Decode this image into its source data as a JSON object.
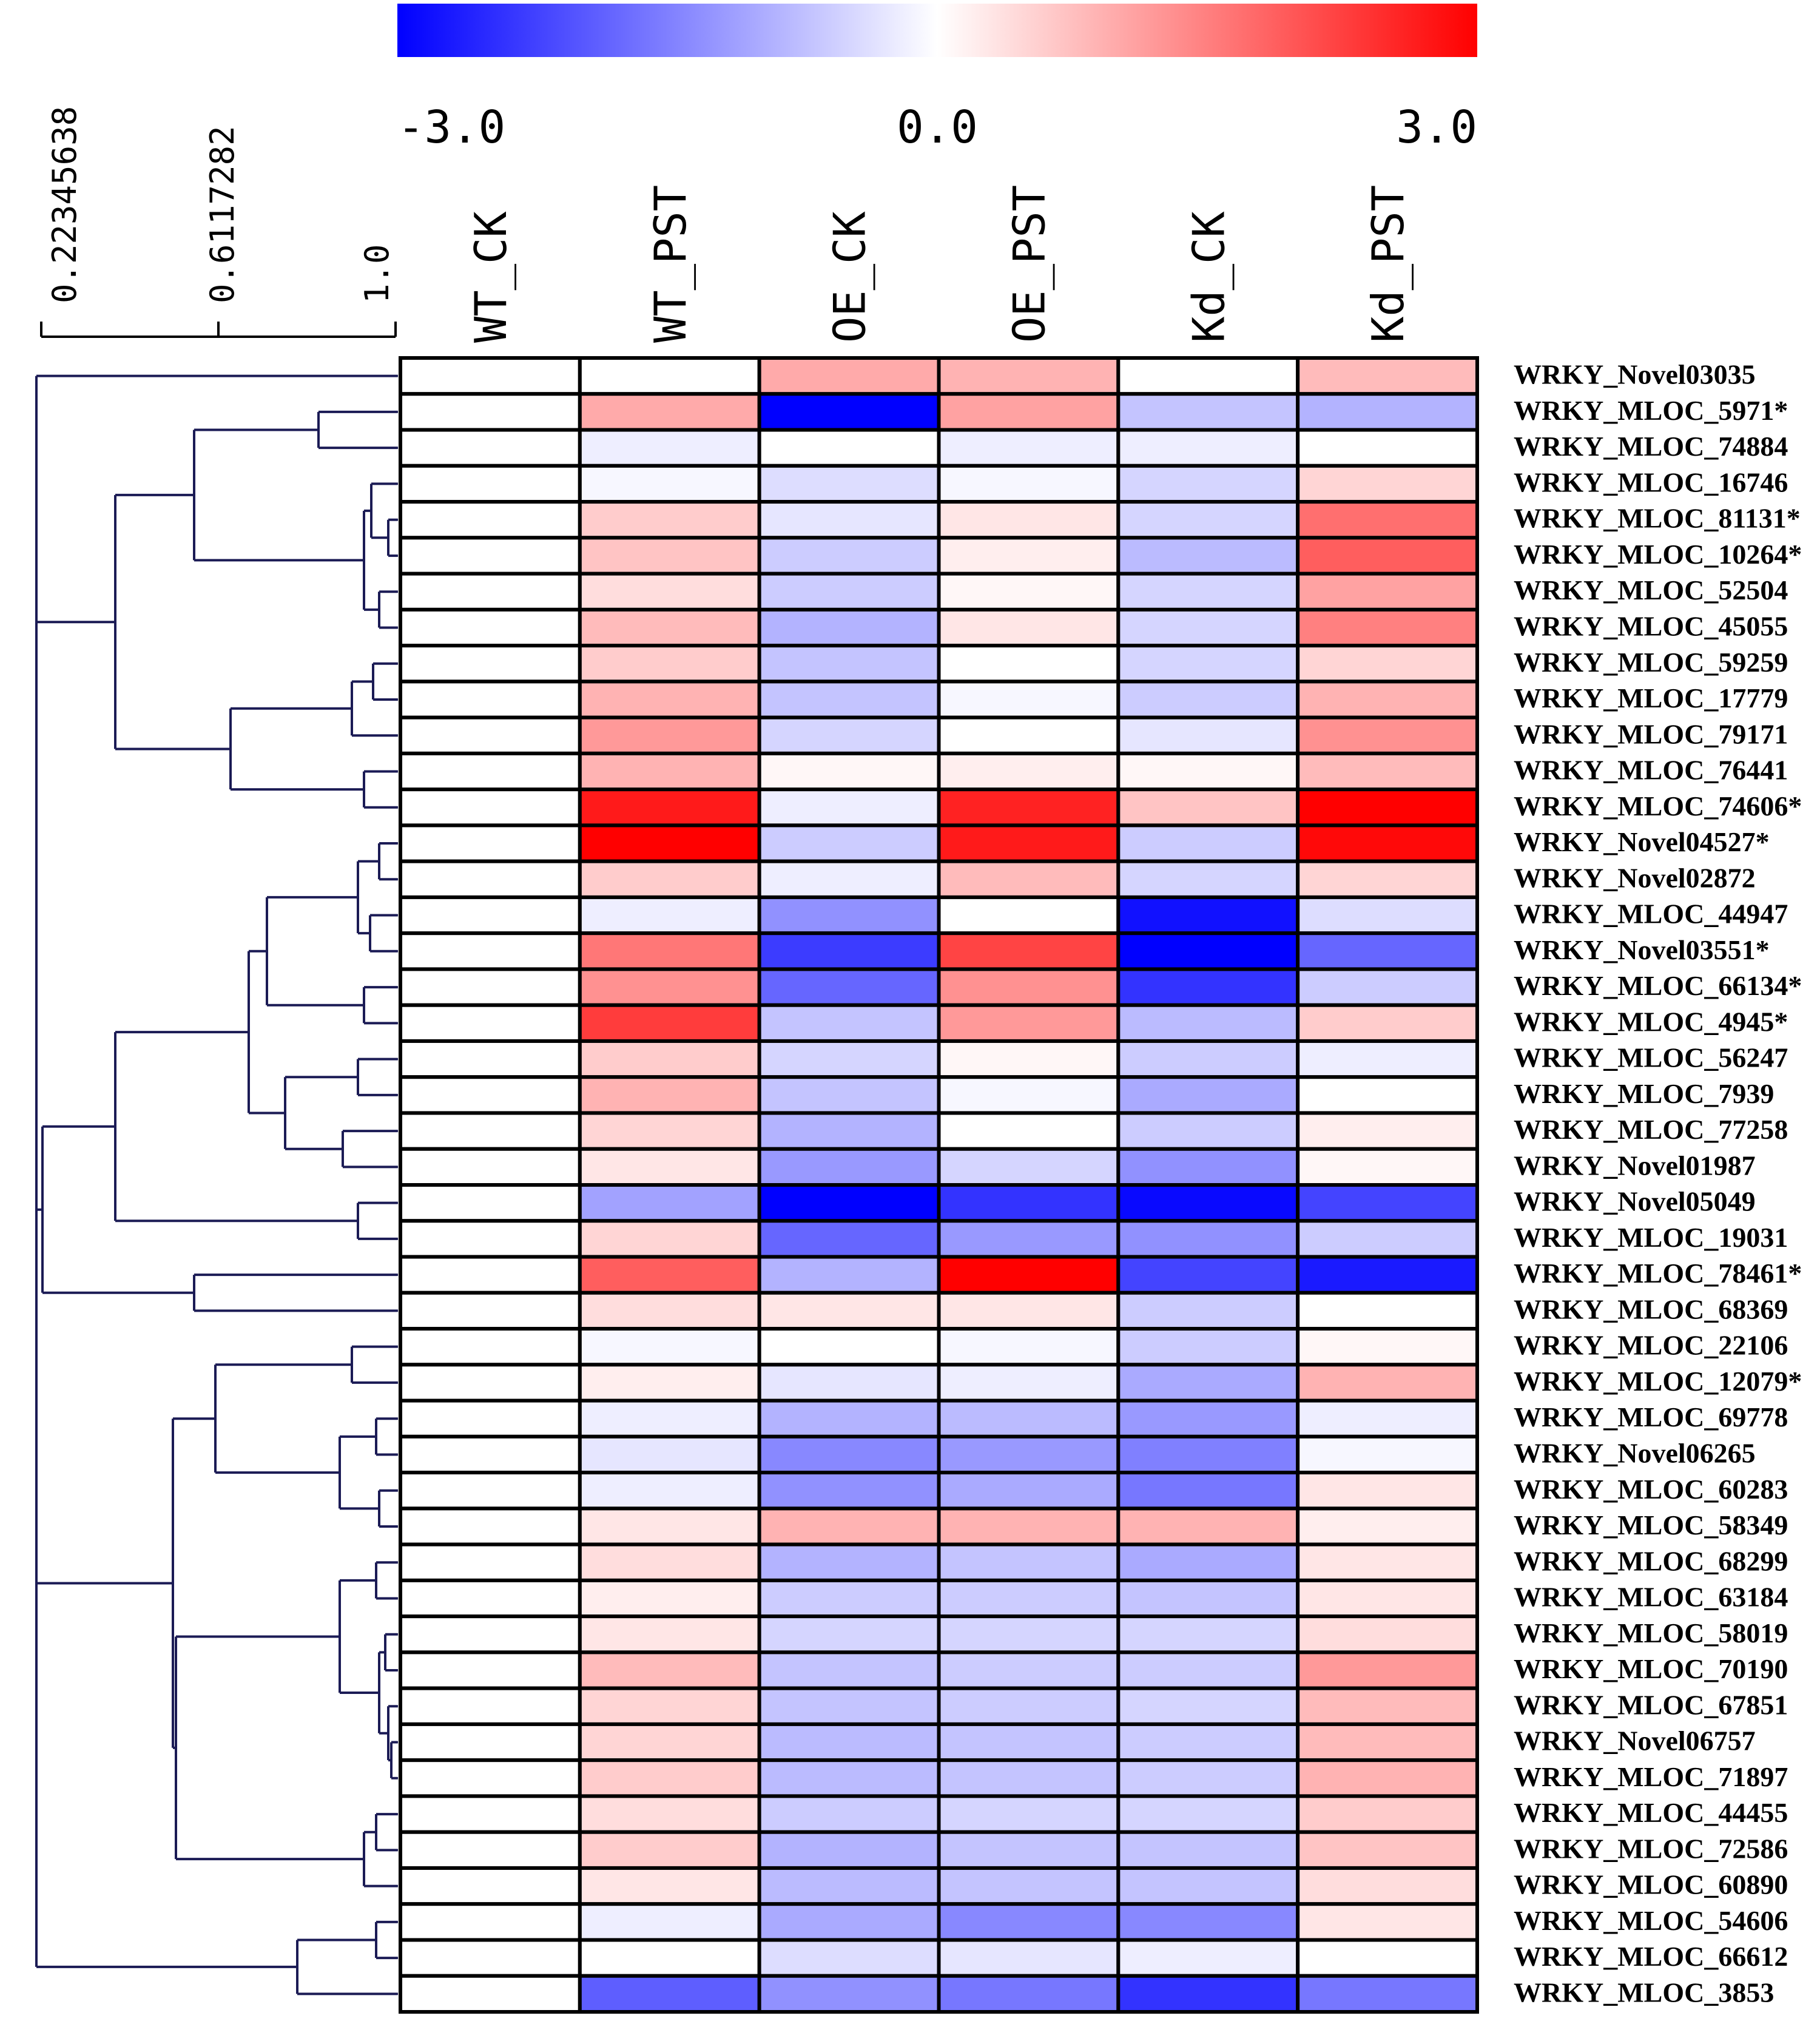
{
  "chart_data": {
    "type": "heatmap",
    "title": "",
    "color_scale": {
      "min": -3.0,
      "mid": 0.0,
      "max": 3.0,
      "min_label": "-3.0",
      "mid_label": "0.0",
      "max_label": "3.0",
      "low_color": "#0000ff",
      "mid_color": "#ffffff",
      "high_color": "#ff0000"
    },
    "dendrogram_scale": {
      "ticks": [
        "0.22345638",
        "0.6117282",
        "1.0"
      ],
      "values": [
        0.22345638,
        0.6117282,
        1.0
      ]
    },
    "columns": [
      "WT_CK",
      "WT_PST",
      "OE_CK",
      "OE_PST",
      "Kd_CK",
      "Kd_PST"
    ],
    "rows": [
      "WRKY_Novel03035",
      "WRKY_MLOC_5971*",
      "WRKY_MLOC_74884",
      "WRKY_MLOC_16746",
      "WRKY_MLOC_81131*",
      "WRKY_MLOC_10264*",
      "WRKY_MLOC_52504",
      "WRKY_MLOC_45055",
      "WRKY_MLOC_59259",
      "WRKY_MLOC_17779",
      "WRKY_MLOC_79171",
      "WRKY_MLOC_76441",
      "WRKY_MLOC_74606*",
      "WRKY_Novel04527*",
      "WRKY_Novel02872",
      "WRKY_MLOC_44947",
      "WRKY_Novel03551*",
      "WRKY_MLOC_66134*",
      "WRKY_MLOC_4945*",
      "WRKY_MLOC_56247",
      "WRKY_MLOC_7939",
      "WRKY_MLOC_77258",
      "WRKY_Novel01987",
      "WRKY_Novel05049",
      "WRKY_MLOC_19031",
      "WRKY_MLOC_78461*",
      "WRKY_MLOC_68369",
      "WRKY_MLOC_22106",
      "WRKY_MLOC_12079*",
      "WRKY_MLOC_69778",
      "WRKY_Novel06265",
      "WRKY_MLOC_60283",
      "WRKY_MLOC_58349",
      "WRKY_MLOC_68299",
      "WRKY_MLOC_63184",
      "WRKY_MLOC_58019",
      "WRKY_MLOC_70190",
      "WRKY_MLOC_67851",
      "WRKY_Novel06757",
      "WRKY_MLOC_71897",
      "WRKY_MLOC_44455",
      "WRKY_MLOC_72586",
      "WRKY_MLOC_60890",
      "WRKY_MLOC_54606",
      "WRKY_MLOC_66612",
      "WRKY_MLOC_3853"
    ],
    "values": [
      [
        0,
        0,
        1.0,
        0.9,
        0,
        0.8
      ],
      [
        0,
        1.0,
        -3.0,
        1.1,
        -0.7,
        -0.9
      ],
      [
        0,
        -0.2,
        0,
        -0.2,
        -0.2,
        0
      ],
      [
        0,
        -0.1,
        -0.4,
        -0.1,
        -0.5,
        0.5
      ],
      [
        0,
        0.6,
        -0.3,
        0.3,
        -0.5,
        1.7
      ],
      [
        0,
        0.7,
        -0.6,
        0.2,
        -0.8,
        1.9
      ],
      [
        0,
        0.4,
        -0.6,
        0.1,
        -0.5,
        1.1
      ],
      [
        0,
        0.8,
        -0.9,
        0.3,
        -0.5,
        1.5
      ],
      [
        0,
        0.6,
        -0.7,
        0,
        -0.5,
        0.5
      ],
      [
        0,
        0.9,
        -0.7,
        -0.1,
        -0.6,
        0.9
      ],
      [
        0,
        1.2,
        -0.5,
        0,
        -0.3,
        1.3
      ],
      [
        0,
        0.9,
        0.1,
        0.2,
        0.1,
        0.8
      ],
      [
        0,
        2.7,
        -0.2,
        2.6,
        0.7,
        3.0
      ],
      [
        0,
        3.0,
        -0.6,
        2.7,
        -0.6,
        2.9
      ],
      [
        0,
        0.6,
        -0.2,
        0.8,
        -0.5,
        0.5
      ],
      [
        0,
        -0.2,
        -1.3,
        0,
        -2.8,
        -0.4
      ],
      [
        0,
        1.6,
        -2.3,
        2.2,
        -3.0,
        -1.8
      ],
      [
        0,
        1.3,
        -1.8,
        1.3,
        -2.4,
        -0.6
      ],
      [
        0,
        2.3,
        -0.7,
        1.2,
        -0.8,
        0.6
      ],
      [
        0,
        0.6,
        -0.5,
        0.1,
        -0.6,
        -0.2
      ],
      [
        0,
        0.9,
        -0.7,
        -0.1,
        -1.0,
        0
      ],
      [
        0,
        0.5,
        -0.9,
        0,
        -0.6,
        0.2
      ],
      [
        0,
        0.3,
        -1.2,
        -0.5,
        -1.3,
        0.1
      ],
      [
        0,
        -1.1,
        -3.0,
        -2.4,
        -2.9,
        -2.2
      ],
      [
        0,
        0.5,
        -1.8,
        -1.2,
        -1.3,
        -0.6
      ],
      [
        0,
        1.9,
        -0.9,
        3.0,
        -2.2,
        -2.7
      ],
      [
        0,
        0.4,
        0.3,
        0.3,
        -0.6,
        0
      ],
      [
        0,
        -0.1,
        0,
        -0.1,
        -0.6,
        0.1
      ],
      [
        0,
        0.2,
        -0.3,
        -0.2,
        -1.0,
        0.9
      ],
      [
        0,
        -0.2,
        -0.9,
        -0.8,
        -1.2,
        -0.2
      ],
      [
        0,
        -0.3,
        -1.4,
        -1.2,
        -1.5,
        -0.1
      ],
      [
        0,
        -0.2,
        -1.3,
        -1.0,
        -1.6,
        0.3
      ],
      [
        0,
        0.3,
        0.9,
        0.9,
        0.9,
        0.2
      ],
      [
        0,
        0.4,
        -0.9,
        -0.7,
        -1.0,
        0.3
      ],
      [
        0,
        0.2,
        -0.6,
        -0.6,
        -0.7,
        0.3
      ],
      [
        0,
        0.3,
        -0.5,
        -0.5,
        -0.5,
        0.4
      ],
      [
        0,
        0.8,
        -0.7,
        -0.6,
        -0.6,
        1.2
      ],
      [
        0,
        0.5,
        -0.7,
        -0.6,
        -0.5,
        0.8
      ],
      [
        0,
        0.5,
        -0.8,
        -0.7,
        -0.6,
        0.8
      ],
      [
        0,
        0.6,
        -0.8,
        -0.7,
        -0.6,
        0.9
      ],
      [
        0,
        0.4,
        -0.6,
        -0.5,
        -0.5,
        0.6
      ],
      [
        0,
        0.6,
        -0.9,
        -0.7,
        -0.7,
        0.7
      ],
      [
        0,
        0.3,
        -0.8,
        -0.7,
        -0.7,
        0.4
      ],
      [
        0,
        -0.2,
        -1.0,
        -1.4,
        -1.4,
        0.3
      ],
      [
        0,
        0,
        -0.4,
        -0.3,
        -0.2,
        0
      ],
      [
        0,
        -1.9,
        -1.3,
        -1.6,
        -2.4,
        -1.6
      ]
    ]
  }
}
